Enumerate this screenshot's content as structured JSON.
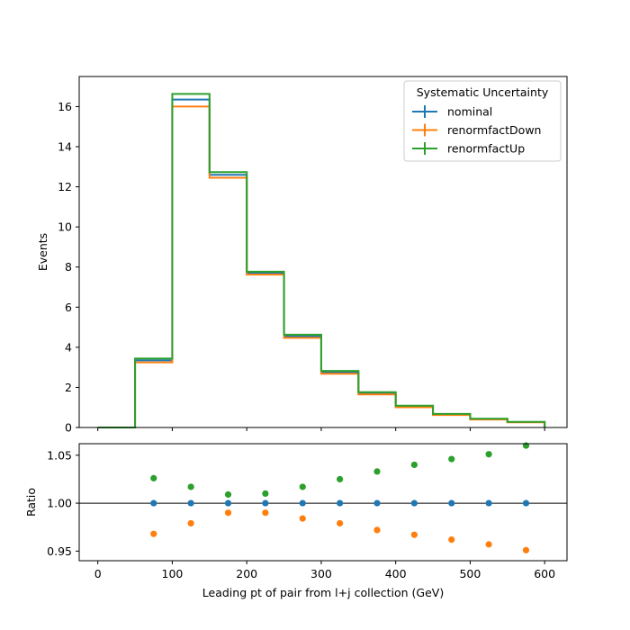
{
  "chart_data": {
    "type": "line",
    "bin_edges": [
      0,
      50,
      100,
      150,
      200,
      250,
      300,
      350,
      400,
      450,
      500,
      550,
      600
    ],
    "xlim": [
      -25,
      630
    ],
    "x_ticks": [
      0,
      100,
      200,
      300,
      400,
      500,
      600
    ],
    "xlabel": "Leading pt of pair from l+j collection (GeV)",
    "main": {
      "ylabel": "Events",
      "ylim": [
        0,
        17.5
      ],
      "y_ticks": [
        0,
        2,
        4,
        6,
        8,
        10,
        12,
        14,
        16
      ],
      "series": [
        {
          "name": "nominal",
          "color": "#1f77b4",
          "values": [
            0.0,
            3.35,
            16.35,
            12.6,
            7.7,
            4.55,
            2.75,
            1.7,
            1.05,
            0.65,
            0.42,
            0.27
          ]
        },
        {
          "name": "renormfactDown",
          "color": "#ff7f0e",
          "values": [
            0.0,
            3.25,
            16.0,
            12.45,
            7.62,
            4.47,
            2.68,
            1.65,
            1.01,
            0.62,
            0.4,
            0.26
          ]
        },
        {
          "name": "renormfactUp",
          "color": "#2ca02c",
          "values": [
            0.0,
            3.44,
            16.63,
            12.73,
            7.77,
            4.63,
            2.82,
            1.76,
            1.09,
            0.68,
            0.44,
            0.28
          ]
        }
      ]
    },
    "ratio": {
      "ylabel": "Ratio",
      "ylim": [
        0.94,
        1.062
      ],
      "y_ticks": [
        0.95,
        1.0,
        1.05
      ],
      "y_tick_labels": [
        "0.95",
        "1.00",
        "1.05"
      ],
      "reference_line": 1.0,
      "x": [
        75,
        125,
        175,
        225,
        275,
        325,
        375,
        425,
        475,
        525,
        575
      ],
      "series": [
        {
          "name": "nominal",
          "color": "#1f77b4",
          "values": [
            1.0,
            1.0,
            1.0,
            1.0,
            1.0,
            1.0,
            1.0,
            1.0,
            1.0,
            1.0,
            1.0
          ]
        },
        {
          "name": "renormfactDown",
          "color": "#ff7f0e",
          "values": [
            0.968,
            0.979,
            0.99,
            0.99,
            0.984,
            0.979,
            0.972,
            0.967,
            0.962,
            0.957,
            0.951
          ]
        },
        {
          "name": "renormfactUp",
          "color": "#2ca02c",
          "values": [
            1.026,
            1.017,
            1.009,
            1.01,
            1.017,
            1.025,
            1.033,
            1.04,
            1.046,
            1.051,
            1.06
          ]
        }
      ]
    },
    "legend": {
      "title": "Systematic Uncertainty",
      "position": "top-right",
      "entries": [
        "nominal",
        "renormfactDown",
        "renormfactUp"
      ]
    },
    "grid": false
  }
}
